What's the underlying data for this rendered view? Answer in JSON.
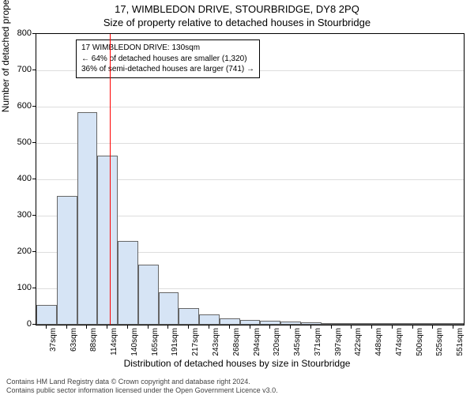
{
  "header": {
    "address": "17, WIMBLEDON DRIVE, STOURBRIDGE, DY8 2PQ",
    "subtitle": "Size of property relative to detached houses in Stourbridge"
  },
  "chart": {
    "type": "histogram",
    "ylim": [
      0,
      800
    ],
    "yticks": [
      0,
      100,
      200,
      300,
      400,
      500,
      600,
      700,
      800
    ],
    "xlabel": "Distribution of detached houses by size in Stourbridge",
    "ylabel": "Number of detached properties",
    "bar_fill": "#d6e4f5",
    "bar_stroke": "#666666",
    "grid_color": "#dddddd",
    "background": "#ffffff",
    "border_color": "#000000",
    "categories": [
      "37sqm",
      "63sqm",
      "88sqm",
      "114sqm",
      "140sqm",
      "165sqm",
      "191sqm",
      "217sqm",
      "243sqm",
      "268sqm",
      "294sqm",
      "320sqm",
      "345sqm",
      "371sqm",
      "397sqm",
      "422sqm",
      "448sqm",
      "474sqm",
      "500sqm",
      "525sqm",
      "551sqm"
    ],
    "values": [
      55,
      355,
      585,
      465,
      230,
      165,
      90,
      45,
      28,
      18,
      14,
      10,
      8,
      6,
      5,
      4,
      4,
      3,
      3,
      2,
      2
    ],
    "marker": {
      "color": "#ff0000",
      "position_index": 3.62
    },
    "annotation": {
      "line1": "17 WIMBLEDON DRIVE: 130sqm",
      "line2": "← 64% of detached houses are smaller (1,320)",
      "line3": "36% of semi-detached houses are larger (741) →"
    }
  },
  "footer": {
    "line1": "Contains HM Land Registry data © Crown copyright and database right 2024.",
    "line2": "Contains public sector information licensed under the Open Government Licence v3.0."
  }
}
